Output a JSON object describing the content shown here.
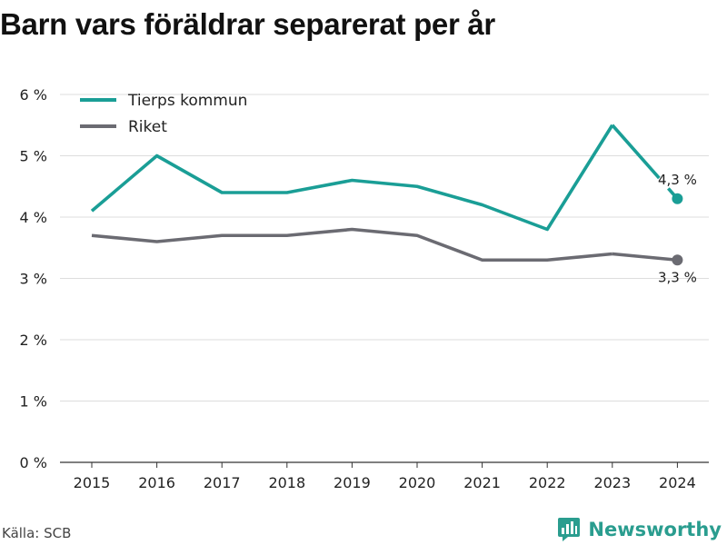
{
  "title": "Barn vars föräldrar separerat per år",
  "source": "Källa: SCB",
  "brand": {
    "name": "Newsworthy",
    "color": "#2a9d8f"
  },
  "chart_data": {
    "type": "line",
    "x": [
      "2015",
      "2016",
      "2017",
      "2018",
      "2019",
      "2020",
      "2021",
      "2022",
      "2023",
      "2024"
    ],
    "series": [
      {
        "name": "Tierps kommun",
        "color": "#1a9e96",
        "values": [
          4.1,
          5.0,
          4.4,
          4.4,
          4.6,
          4.5,
          4.2,
          3.8,
          5.5,
          4.3
        ],
        "last_label": "4,3 %"
      },
      {
        "name": "Riket",
        "color": "#6b6b72",
        "values": [
          3.7,
          3.6,
          3.7,
          3.7,
          3.8,
          3.7,
          3.3,
          3.3,
          3.4,
          3.3
        ],
        "last_label": "3,3 %"
      }
    ],
    "ylim": [
      0,
      6
    ],
    "yticks": [
      0,
      1,
      2,
      3,
      4,
      5,
      6
    ],
    "ytick_labels": [
      "0 %",
      "1 %",
      "2 %",
      "3 %",
      "4 %",
      "5 %",
      "6 %"
    ],
    "grid": true,
    "legend_position": "top-left"
  }
}
